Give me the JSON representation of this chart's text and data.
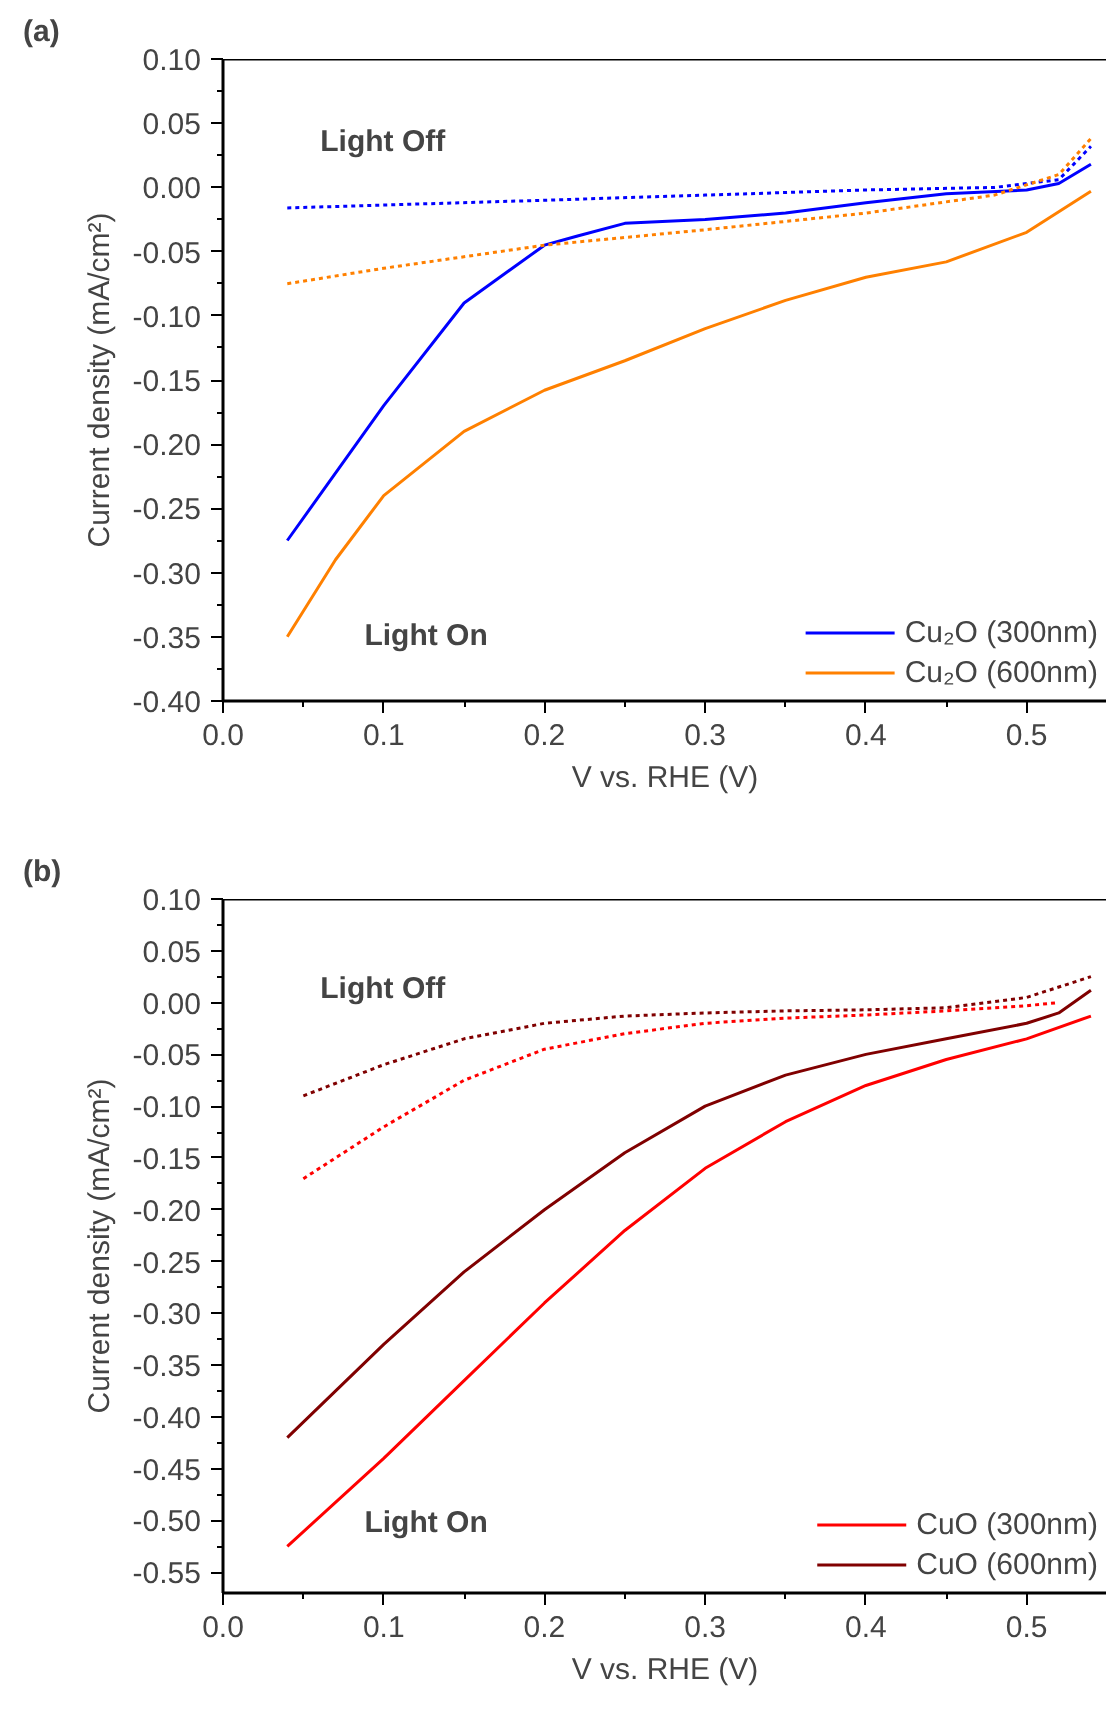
{
  "chart_data": [
    {
      "type": "line",
      "title": "(a)",
      "xlabel": "V vs. RHE (V)",
      "ylabel": "Current density (mA/cm²)",
      "xlim": [
        0,
        0.55
      ],
      "ylim": [
        -0.4,
        0.1
      ],
      "xticks": [
        {
          "value": 0,
          "label": "0.0"
        },
        0.1,
        0.2,
        0.3,
        0.4,
        0.5
      ],
      "yticks": [
        {
          "value": -0.4,
          "label": "-0.40"
        },
        {
          "value": -0.35,
          "label": "-0.35"
        },
        {
          "value": -0.3,
          "label": "-0.30"
        },
        {
          "value": -0.25,
          "label": "-0.25"
        },
        {
          "value": -0.2,
          "label": "-0.20"
        },
        {
          "value": -0.15,
          "label": "-0.15"
        },
        {
          "value": -0.1,
          "label": "-0.10"
        },
        {
          "value": -0.05,
          "label": "-0.05"
        },
        {
          "value": 0,
          "label": "0.00"
        },
        {
          "value": 0.05,
          "label": "0.05"
        },
        {
          "value": 0.1,
          "label": "0.10"
        }
      ],
      "grid": false,
      "legend": "bottom right",
      "annotations": [
        "Light Off",
        "Light On"
      ],
      "series": [
        {
          "name": "Cu₂O (300nm)",
          "color": "#0000ff",
          "line_style": "solid",
          "x": [
            0.04,
            0.1,
            0.15,
            0.2,
            0.22,
            0.25,
            0.3,
            0.35,
            0.4,
            0.45,
            0.5,
            0.52,
            0.54
          ],
          "values": [
            -0.275,
            -0.17,
            -0.09,
            -0.045,
            -0.038,
            -0.028,
            -0.025,
            -0.02,
            -0.012,
            -0.005,
            -0.002,
            0.003,
            0.018
          ]
        },
        {
          "name": "Cu₂O (600nm)",
          "color": "#ff8000",
          "line_style": "solid",
          "x": [
            0.04,
            0.07,
            0.1,
            0.15,
            0.2,
            0.25,
            0.3,
            0.35,
            0.4,
            0.45,
            0.5,
            0.54
          ],
          "values": [
            -0.35,
            -0.29,
            -0.24,
            -0.19,
            -0.158,
            -0.135,
            -0.11,
            -0.088,
            -0.07,
            -0.058,
            -0.035,
            -0.003
          ]
        },
        {
          "color": "#0000ff",
          "line_style": "dotted",
          "x": [
            0.04,
            0.2,
            0.3,
            0.4,
            0.48,
            0.52,
            0.54
          ],
          "values": [
            -0.016,
            -0.01,
            -0.006,
            -0.002,
            0.0,
            0.006,
            0.032
          ]
        },
        {
          "color": "#ff8000",
          "line_style": "dotted",
          "x": [
            0.04,
            0.1,
            0.2,
            0.3,
            0.4,
            0.48,
            0.52,
            0.54
          ],
          "values": [
            -0.075,
            -0.063,
            -0.045,
            -0.033,
            -0.02,
            -0.006,
            0.01,
            0.038
          ]
        }
      ]
    },
    {
      "type": "line",
      "title": "(b)",
      "xlabel": "V vs. RHE (V)",
      "ylabel": "Current density (mA/cm²)",
      "xlim": [
        0,
        0.55
      ],
      "ylim": [
        -0.57,
        0.1
      ],
      "xticks": [
        {
          "value": 0,
          "label": "0.0"
        },
        0.1,
        0.2,
        0.3,
        0.4,
        0.5
      ],
      "yticks": [
        {
          "value": -0.55,
          "label": "-0.55"
        },
        {
          "value": -0.5,
          "label": "-0.50"
        },
        {
          "value": -0.45,
          "label": "-0.45"
        },
        {
          "value": -0.4,
          "label": "-0.40"
        },
        {
          "value": -0.35,
          "label": "-0.35"
        },
        {
          "value": -0.3,
          "label": "-0.30"
        },
        {
          "value": -0.25,
          "label": "-0.25"
        },
        {
          "value": -0.2,
          "label": "-0.20"
        },
        {
          "value": -0.15,
          "label": "-0.15"
        },
        {
          "value": -0.1,
          "label": "-0.10"
        },
        {
          "value": -0.05,
          "label": "-0.05"
        },
        {
          "value": 0,
          "label": "0.00"
        },
        {
          "value": 0.05,
          "label": "0.05"
        },
        {
          "value": 0.1,
          "label": "0.10"
        }
      ],
      "grid": false,
      "legend": "bottom right",
      "annotations": [
        "Light Off",
        "Light On"
      ],
      "series": [
        {
          "name": "CuO (300nm)",
          "color": "#ff0000",
          "line_style": "solid",
          "x": [
            0.04,
            0.1,
            0.15,
            0.2,
            0.25,
            0.3,
            0.35,
            0.4,
            0.45,
            0.5,
            0.54
          ],
          "values": [
            -0.525,
            -0.44,
            -0.365,
            -0.29,
            -0.22,
            -0.16,
            -0.115,
            -0.08,
            -0.055,
            -0.035,
            -0.013
          ]
        },
        {
          "name": "CuO (600nm)",
          "color": "#800000",
          "line_style": "solid",
          "x": [
            0.04,
            0.1,
            0.15,
            0.2,
            0.25,
            0.3,
            0.35,
            0.4,
            0.45,
            0.5,
            0.52,
            0.54
          ],
          "values": [
            -0.42,
            -0.33,
            -0.26,
            -0.2,
            -0.145,
            -0.1,
            -0.07,
            -0.05,
            -0.035,
            -0.02,
            -0.01,
            0.012
          ]
        },
        {
          "color": "#ff0000",
          "line_style": "dotted",
          "x": [
            0.05,
            0.1,
            0.15,
            0.2,
            0.25,
            0.3,
            0.35,
            0.4,
            0.45,
            0.5,
            0.52
          ],
          "values": [
            -0.17,
            -0.12,
            -0.075,
            -0.045,
            -0.03,
            -0.02,
            -0.015,
            -0.012,
            -0.008,
            -0.003,
            0.0
          ]
        },
        {
          "color": "#800000",
          "line_style": "dotted",
          "x": [
            0.05,
            0.1,
            0.15,
            0.2,
            0.25,
            0.3,
            0.35,
            0.4,
            0.45,
            0.5,
            0.54
          ],
          "values": [
            -0.09,
            -0.06,
            -0.035,
            -0.02,
            -0.013,
            -0.01,
            -0.008,
            -0.007,
            -0.005,
            0.005,
            0.025
          ]
        }
      ]
    }
  ]
}
